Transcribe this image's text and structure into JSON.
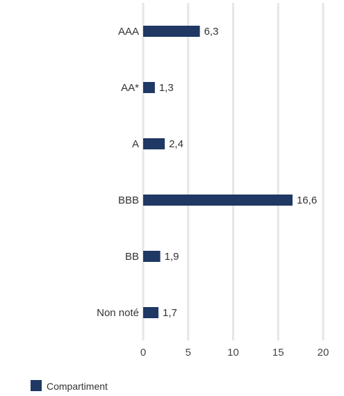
{
  "chart_data": {
    "type": "bar",
    "orientation": "horizontal",
    "categories": [
      "AAA",
      "AA*",
      "A",
      "BBB",
      "BB",
      "Non noté"
    ],
    "series": [
      {
        "name": "Compartiment",
        "values": [
          6.3,
          1.3,
          2.4,
          16.6,
          1.9,
          1.7
        ],
        "value_labels": [
          "6,3",
          "1,3",
          "2,4",
          "16,6",
          "1,9",
          "1,7"
        ],
        "color": "#1f3864"
      }
    ],
    "xlim": [
      0,
      20
    ],
    "xticks": [
      0,
      5,
      10,
      15,
      20
    ],
    "xtick_labels": [
      "0",
      "5",
      "10",
      "15",
      "20"
    ],
    "grid": "vertical",
    "grid_color": "#e6e6e6",
    "legend": {
      "placement": "bottom-left",
      "label": "Compartiment"
    }
  }
}
